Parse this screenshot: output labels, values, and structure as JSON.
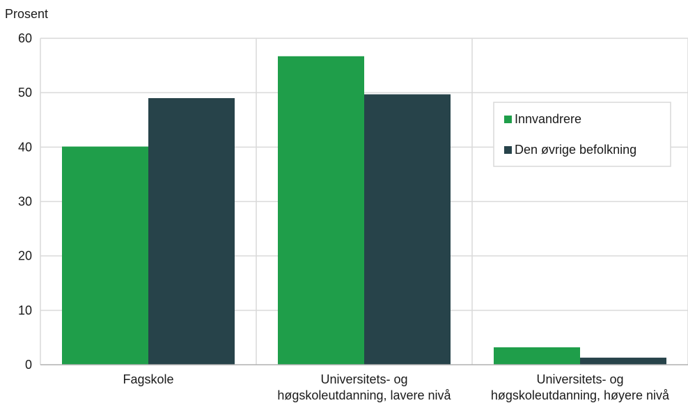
{
  "chart_data": {
    "type": "bar",
    "ylabel": "Prosent",
    "xlabel": "",
    "ylim": [
      0,
      60
    ],
    "yticks": [
      0,
      10,
      20,
      30,
      40,
      50,
      60
    ],
    "categories": [
      [
        "Fagskole"
      ],
      [
        "Universitets- og",
        "høgskoleutdanning, lavere nivå"
      ],
      [
        "Universitets- og",
        "høgskoleutdanning, høyere nivå"
      ]
    ],
    "series": [
      {
        "name": "Innvandrere",
        "color": "#1f9e4a",
        "values": [
          40.1,
          56.7,
          3.2
        ]
      },
      {
        "name": "Den øvrige befolkning",
        "color": "#27434a",
        "values": [
          49.0,
          49.7,
          1.3
        ]
      }
    ],
    "grid": true,
    "legend_position": "right"
  }
}
